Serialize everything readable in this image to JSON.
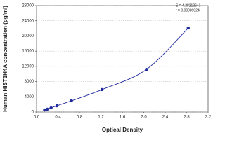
{
  "chart_data": {
    "type": "scatter",
    "x_label": "Optical Density",
    "y_label": "Human HIST1H4A concentration (pg/ml)",
    "annotations": [
      "S = 4.28212641",
      "r = 0.99989024"
    ],
    "x": [
      0.15,
      0.2,
      0.27,
      0.38,
      0.65,
      1.22,
      2.05,
      2.83
    ],
    "values": [
      550,
      740,
      1100,
      1650,
      2950,
      5900,
      11200,
      22100
    ],
    "color": "#1f2a9c",
    "xlim": [
      0,
      3.2
    ],
    "xticks": [
      {
        "value": 0,
        "label": "0.0"
      },
      0.4,
      0.8,
      1.2,
      1.6,
      {
        "value": 2,
        "label": "2.0"
      },
      2.4,
      2.8,
      3.2
    ],
    "ylim": [
      0,
      28000
    ],
    "yticks": [
      0,
      4000,
      8000,
      12000,
      16000,
      20000,
      24000,
      28000
    ],
    "grid": true
  }
}
